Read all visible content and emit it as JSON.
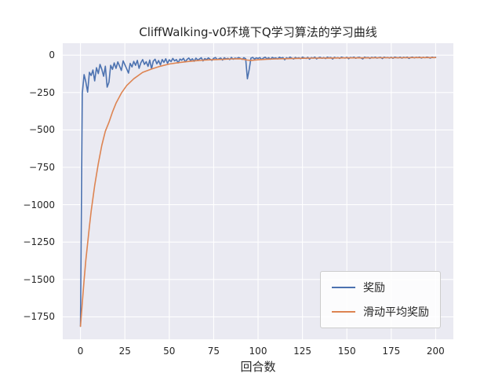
{
  "figure": {
    "title": "CliffWalking-v0环境下Q学习算法的学习曲线",
    "x_axis_label": "回合数"
  },
  "colors": {
    "figure_bg": "#ffffff",
    "axes_bg": "#eaeaf2",
    "grid": "#ffffff",
    "text": "#262626",
    "reward_line": "#4c72b0",
    "moving_avg_line": "#dd8452"
  },
  "chart_data": {
    "type": "line",
    "title": "CliffWalking-v0环境下Q学习算法的学习曲线",
    "xlabel": "回合数",
    "ylabel": "",
    "xlim": [
      -10,
      210
    ],
    "ylim": [
      -1900,
      80
    ],
    "grid": true,
    "legend_position": "lower right",
    "xticks": [
      0,
      25,
      50,
      75,
      100,
      125,
      150,
      175,
      200
    ],
    "xtick_labels": [
      "0",
      "25",
      "50",
      "75",
      "100",
      "125",
      "150",
      "175",
      "200"
    ],
    "yticks": [
      0,
      -250,
      -500,
      -750,
      -1000,
      -1250,
      -1500,
      -1750
    ],
    "ytick_labels": [
      "0",
      "−250",
      "−500",
      "−750",
      "−1000",
      "−1250",
      "−1500",
      "−1750"
    ],
    "series": [
      {
        "name": "奖励",
        "color": "#4c72b0",
        "x_start": 0,
        "x_step": 1,
        "values": [
          -1813,
          -256,
          -130,
          -178,
          -247,
          -115,
          -136,
          -99,
          -172,
          -84,
          -123,
          -62,
          -95,
          -141,
          -74,
          -214,
          -181,
          -68,
          -95,
          -52,
          -88,
          -45,
          -73,
          -102,
          -38,
          -64,
          -91,
          -120,
          -55,
          -79,
          -42,
          -68,
          -35,
          -88,
          -51,
          -30,
          -62,
          -44,
          -75,
          -33,
          -92,
          -40,
          -27,
          -58,
          -36,
          -65,
          -29,
          -48,
          -24,
          -55,
          -31,
          -43,
          -22,
          -38,
          -29,
          -52,
          -26,
          -34,
          -21,
          -45,
          -28,
          -19,
          -36,
          -24,
          -41,
          -20,
          -32,
          -26,
          -17,
          -38,
          -23,
          -30,
          -18,
          -27,
          -35,
          -21,
          -16,
          -29,
          -24,
          -19,
          -33,
          -17,
          -25,
          -21,
          -30,
          -15,
          -27,
          -19,
          -23,
          -16,
          -21,
          -28,
          -17,
          -24,
          -158,
          -96,
          -20,
          -15,
          -26,
          -18,
          -22,
          -16,
          -29,
          -19,
          -14,
          -24,
          -17,
          -27,
          -15,
          -21,
          -18,
          -25,
          -14,
          -20,
          -16,
          -31,
          -17,
          -23,
          -13,
          -19,
          -26,
          -15,
          -21,
          -17,
          -24,
          -13,
          -18,
          -22,
          -14,
          -27,
          -16,
          -20,
          -13,
          -25,
          -17,
          -14,
          -21,
          -16,
          -23,
          -13,
          -18,
          -15,
          -26,
          -14,
          -19,
          -16,
          -22,
          -13,
          -17,
          -20,
          -14,
          -24,
          -15,
          -18,
          -13,
          -21,
          -16,
          -14,
          -19,
          -25,
          -13,
          -17,
          -15,
          -22,
          -14,
          -18,
          -13,
          -20,
          -16,
          -14,
          -23,
          -13,
          -17,
          -15,
          -19,
          -14,
          -21,
          -13,
          -16,
          -18,
          -13,
          -20,
          -14,
          -17,
          -13,
          -22,
          -15,
          -13,
          -18,
          -14,
          -16,
          -13,
          -19,
          -14,
          -17,
          -13,
          -15,
          -20,
          -13,
          -16,
          -14
        ]
      },
      {
        "name": "滑动平均奖励",
        "color": "#dd8452",
        "x": [
          0,
          1,
          2,
          3,
          4,
          5,
          6,
          8,
          10,
          12,
          14,
          16,
          18,
          20,
          23,
          26,
          30,
          35,
          40,
          45,
          50,
          55,
          60,
          65,
          70,
          75,
          80,
          85,
          90,
          94,
          96,
          100,
          105,
          110,
          120,
          130,
          140,
          150,
          160,
          170,
          180,
          190,
          200
        ],
        "values": [
          -1813,
          -1657,
          -1505,
          -1372,
          -1259,
          -1145,
          -1044,
          -872,
          -726,
          -603,
          -509,
          -449,
          -380,
          -321,
          -254,
          -203,
          -158,
          -115,
          -93,
          -74,
          -59,
          -50,
          -43,
          -37,
          -33,
          -30,
          -28,
          -25,
          -24,
          -33,
          -35,
          -31,
          -27,
          -25,
          -22,
          -20,
          -19,
          -18,
          -18,
          -17,
          -17,
          -16,
          -16
        ]
      }
    ]
  }
}
